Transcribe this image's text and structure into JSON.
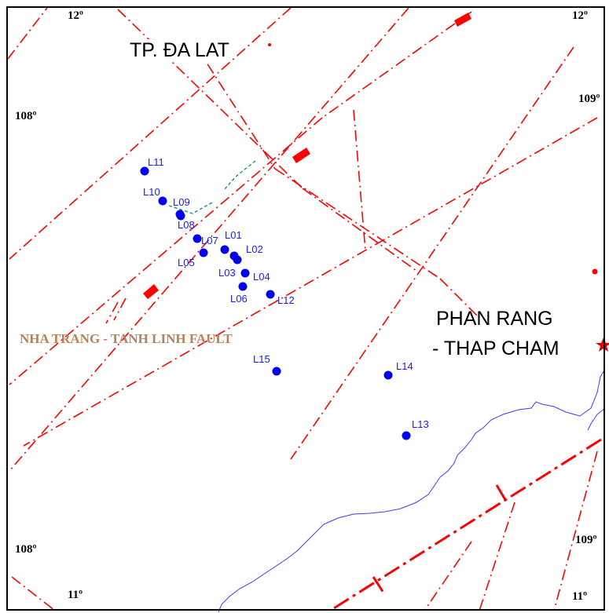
{
  "grid_labels": {
    "lat_top_left": "12º",
    "lat_top_right": "12º",
    "lon_left_upper": "108º",
    "lon_right_upper": "109º",
    "lon_left_lower": "108º",
    "lon_right_lower": "109º",
    "lat_bottom_left": "11º",
    "lat_bottom_right": "11º"
  },
  "cities": {
    "dalat": "TP. ĐA LAT",
    "phan_rang_line1": "PHAN RANG",
    "phan_rang_line2": "- THAP CHAM"
  },
  "fault_label": "NHA TRANG - TANH LINH FAULT",
  "stations": [
    {
      "label": "L11"
    },
    {
      "label": "L10"
    },
    {
      "label": "L09"
    },
    {
      "label": "L08"
    },
    {
      "label": "L07"
    },
    {
      "label": "L05"
    },
    {
      "label": "L01"
    },
    {
      "label": "L02"
    },
    {
      "label": "L03"
    },
    {
      "label": "L04"
    },
    {
      "label": "L06"
    },
    {
      "label": "L12"
    },
    {
      "label": "L15"
    },
    {
      "label": "L14"
    },
    {
      "label": "L13"
    }
  ],
  "colors": {
    "fault": "#ff0000",
    "station": "#0000ee",
    "station_label": "#1a1aff",
    "coastline": "#3a3aff",
    "fault_label": "#b8805a"
  }
}
